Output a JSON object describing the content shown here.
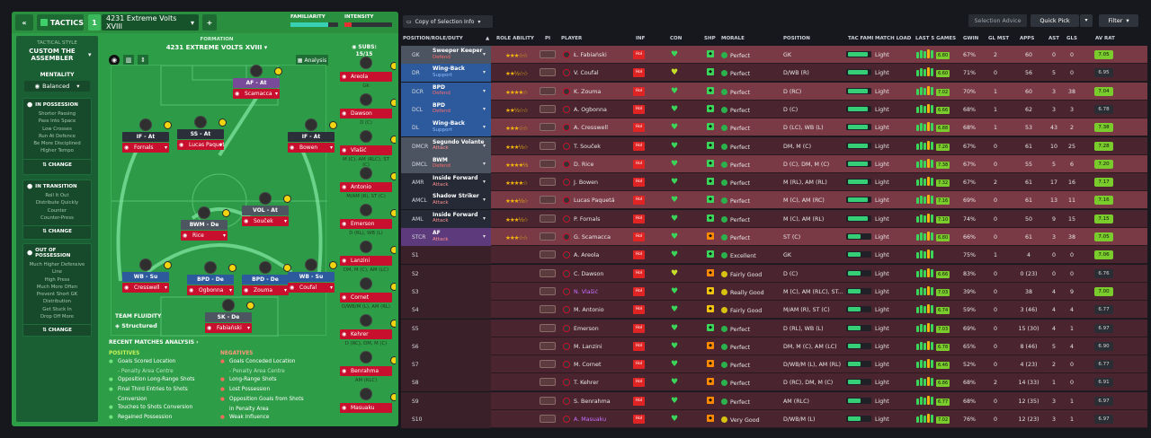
{
  "topbar": {
    "back": "«",
    "tactics": "TACTICS",
    "slot": "1",
    "tactic_name": "4231 Extreme Volts XVIII",
    "add": "+",
    "familiarity": "FAMILIARITY",
    "intensity": "INTENSITY"
  },
  "sidebar": {
    "style_label": "TACTICAL STYLE",
    "style_name": "CUSTOM THE ASSEMBLER",
    "mentality_label": "MENTALITY",
    "mentality_value": "Balanced",
    "in_possession": {
      "title": "IN POSSESSION",
      "lines": [
        "Shorter Passing",
        "Pass Into Space",
        "Low Crosses",
        "Run At Defence",
        "Be More Disciplined",
        "Higher Tempo"
      ],
      "change": "CHANGE"
    },
    "in_transition": {
      "title": "IN TRANSITION",
      "lines": [
        "Roll It Out",
        "Distribute Quickly",
        "Counter",
        "Counter-Press"
      ],
      "change": "CHANGE"
    },
    "out_of_possession": {
      "title": "OUT OF POSSESSION",
      "lines": [
        "Much Higher Defensive",
        "Line",
        "High Press",
        "Much More Often",
        "Prevent Short GK",
        "Distribution",
        "Get Stuck In",
        "Drop Off More"
      ],
      "change": "CHANGE"
    }
  },
  "formation": {
    "label": "FORMATION",
    "name": "4231 EXTREME VOLTS XVIII",
    "analysis": "Analysis",
    "subs_label": "SUBS:",
    "subs_count": "15/15"
  },
  "pitch_players": [
    {
      "role": "AF - At",
      "name": "Scamacca",
      "color": "#7a4a9a"
    },
    {
      "role": "IF - At",
      "name": "Fornals",
      "color": "#2a2f3a"
    },
    {
      "role": "SS - At",
      "name": "Lucas Paquetá",
      "color": "#2a2f3a"
    },
    {
      "role": "IF - At",
      "name": "Bowen",
      "color": "#2a2f3a"
    },
    {
      "role": "BWM - De",
      "name": "Rice",
      "color": "#4d5660"
    },
    {
      "role": "VOL - At",
      "name": "Souček",
      "color": "#4d5660"
    },
    {
      "role": "WB - Su",
      "name": "Cresswell",
      "color": "#2c5a9c"
    },
    {
      "role": "BPD - De",
      "name": "Ogbonna",
      "color": "#2c5a9c"
    },
    {
      "role": "BPD - De",
      "name": "Zouma",
      "color": "#2c5a9c"
    },
    {
      "role": "WB - Su",
      "name": "Coufal",
      "color": "#2c5a9c"
    },
    {
      "role": "SK - De",
      "name": "Fabiański",
      "color": "#4d5660"
    }
  ],
  "team_fluidity": {
    "label": "TEAM FLUIDITY",
    "value": "Structured"
  },
  "subs": [
    {
      "name": "Areola",
      "pos": "GK"
    },
    {
      "name": "Dawson",
      "pos": "D (C)"
    },
    {
      "name": "Vlašić",
      "pos": "M (C), AM (RLC), ST (C)"
    },
    {
      "name": "Antonio",
      "pos": "M/AM (R), ST (C)"
    },
    {
      "name": "Emerson",
      "pos": "D (RL), WB (L)"
    },
    {
      "name": "Lanzini",
      "pos": "DM, M (C), AM (LC)"
    },
    {
      "name": "Cornet",
      "pos": "D/WB/M (L), AM (RL)"
    },
    {
      "name": "Kehrer",
      "pos": "D (RC), DM, M (C)"
    },
    {
      "name": "Benrahma",
      "pos": "AM (RLC)"
    },
    {
      "name": "Masuaku",
      "pos": ""
    }
  ],
  "analysis": {
    "title": "RECENT MATCHES ANALYSIS",
    "positives_label": "POSITIVES",
    "negatives_label": "NEGATIVES",
    "positives": [
      "Goals Scored Location",
      "- Penalty Area Centre",
      "Opposition Long-Range Shots",
      "Final Third Entries to Shots",
      "Conversion",
      "Touches to Shots Conversion",
      "Regained Possession"
    ],
    "negatives": [
      "Goals Conceded Location",
      "- Penalty Area Centre",
      "Long-Range Shots",
      "Lost Possession",
      "Opposition Goals from Shots",
      "in Penalty Area",
      "Weak Influence"
    ]
  },
  "right_top": {
    "copy": "Copy of Selection Info",
    "advice": "Selection Advice",
    "quick_pick": "Quick Pick",
    "filter": "Filter"
  },
  "headers": {
    "pos": "POSITION/ROLE/DUTY",
    "ability": "ROLE ABILITY",
    "pi": "PI",
    "player": "PLAYER",
    "inf": "INF",
    "con": "CON",
    "shp": "SHP",
    "morale": "MORALE",
    "position": "POSITION",
    "tac": "TAC FAMI",
    "load": "MATCH LOAD",
    "l5": "LAST 5 GAMES",
    "gwin": "GWIN",
    "glm": "GL MST",
    "apps": "APPS",
    "ast": "AST",
    "gls": "GLS",
    "av": "AV RAT"
  },
  "rows": [
    {
      "pos": "GK",
      "role": "Sweeper Keeper",
      "duty": "Defend",
      "stars": "★★★☆☆",
      "name": "Ł. Fabiański",
      "inf": "Hol",
      "morale": "Perfect",
      "position": "GK",
      "load": "Light",
      "l5": "6.80",
      "gwin": "67%",
      "glm": "2",
      "apps": "60",
      "ast": "0",
      "gls": "0",
      "av": "7.05",
      "hl": "#7a3a45",
      "pc": "#4c5462"
    },
    {
      "pos": "DR",
      "role": "Wing-Back",
      "duty": "Support",
      "stars": "★★½☆☆",
      "name": "V. Coufal",
      "inf": "Hol",
      "morale": "Perfect",
      "position": "D/WB (R)",
      "load": "Light",
      "l5": "6.60",
      "gwin": "71%",
      "glm": "0",
      "apps": "56",
      "ast": "5",
      "gls": "0",
      "av": "6.95",
      "hl": "#4a2530",
      "pc": "#2c5a9c"
    },
    {
      "pos": "DCR",
      "role": "BPD",
      "duty": "Defend",
      "stars": "★★★★☆",
      "name": "K. Zouma",
      "inf": "Hol",
      "morale": "Perfect",
      "position": "D (RC)",
      "load": "Light",
      "l5": "7.02",
      "gwin": "70%",
      "glm": "1",
      "apps": "60",
      "ast": "3",
      "gls": "38",
      "av": "7.04",
      "hl": "#7a3a45",
      "pc": "#2c5a9c"
    },
    {
      "pos": "DCL",
      "role": "BPD",
      "duty": "Defend",
      "stars": "★★½☆☆",
      "name": "A. Ogbonna",
      "inf": "Hol",
      "morale": "Perfect",
      "position": "D (C)",
      "load": "Light",
      "l5": "6.66",
      "gwin": "68%",
      "glm": "1",
      "apps": "62",
      "ast": "3",
      "gls": "3",
      "av": "6.78",
      "hl": "#4a2530",
      "pc": "#2c5a9c"
    },
    {
      "pos": "DL",
      "role": "Wing-Back",
      "duty": "Support",
      "stars": "★★★☆☆",
      "name": "A. Cresswell",
      "inf": "Hol",
      "morale": "Perfect",
      "position": "D (LC), WB (L)",
      "load": "Light",
      "l5": "6.88",
      "gwin": "68%",
      "glm": "1",
      "apps": "53",
      "ast": "43",
      "gls": "2",
      "av": "7.38",
      "hl": "#7a3a45",
      "pc": "#2c5a9c"
    },
    {
      "pos": "DMCR",
      "role": "Segundo Volante",
      "duty": "Attack",
      "stars": "★★★½☆",
      "name": "T. Souček",
      "inf": "Hol",
      "morale": "Perfect",
      "position": "DM, M (C)",
      "load": "Light",
      "l5": "7.26",
      "gwin": "67%",
      "glm": "0",
      "apps": "61",
      "ast": "10",
      "gls": "25",
      "av": "7.28",
      "hl": "#4a2530",
      "pc": "#4c5462"
    },
    {
      "pos": "DMCL",
      "role": "BWM",
      "duty": "Defend",
      "stars": "★★★★½",
      "name": "D. Rice",
      "inf": "Hol",
      "morale": "Perfect",
      "position": "D (C), DM, M (C)",
      "load": "Light",
      "l5": "7.38",
      "gwin": "67%",
      "glm": "0",
      "apps": "55",
      "ast": "5",
      "gls": "6",
      "av": "7.20",
      "hl": "#7a3a45",
      "pc": "#4c5462"
    },
    {
      "pos": "AMR",
      "role": "Inside Forward",
      "duty": "Attack",
      "stars": "★★★★☆",
      "name": "J. Bowen",
      "inf": "Hol",
      "morale": "Perfect",
      "position": "M (RL), AM (RL)",
      "load": "Light",
      "l5": "7.32",
      "gwin": "67%",
      "glm": "2",
      "apps": "61",
      "ast": "17",
      "gls": "16",
      "av": "7.17",
      "hl": "#4a2530",
      "pc": "#252a36"
    },
    {
      "pos": "AMCL",
      "role": "Shadow Striker",
      "duty": "Attack",
      "stars": "★★★½☆",
      "name": "Lucas Paquetá",
      "inf": "Hol",
      "morale": "Perfect",
      "position": "M (C), AM (RC)",
      "load": "Light",
      "l5": "7.16",
      "gwin": "69%",
      "glm": "0",
      "apps": "61",
      "ast": "13",
      "gls": "11",
      "av": "7.16",
      "hl": "#7a3a45",
      "pc": "#252a36"
    },
    {
      "pos": "AML",
      "role": "Inside Forward",
      "duty": "Attack",
      "stars": "★★★½☆",
      "name": "P. Fornals",
      "inf": "Hol",
      "morale": "Perfect",
      "position": "M (C), AM (RL)",
      "load": "Light",
      "l5": "7.10",
      "gwin": "74%",
      "glm": "0",
      "apps": "50",
      "ast": "9",
      "gls": "15",
      "av": "7.15",
      "hl": "#4a2530",
      "pc": "#252a36"
    },
    {
      "pos": "STCR",
      "role": "AF",
      "duty": "Attack",
      "stars": "★★★☆☆",
      "name": "G. Scamacca",
      "inf": "Hol",
      "morale": "Perfect",
      "position": "ST (C)",
      "load": "Light",
      "l5": "6.80",
      "gwin": "66%",
      "glm": "0",
      "apps": "61",
      "ast": "3",
      "gls": "38",
      "av": "7.05",
      "hl": "#7a3a45",
      "pc": "#5c3a7c"
    },
    {
      "pos": "S1",
      "role": "",
      "duty": "",
      "stars": "",
      "name": "A. Areola",
      "inf": "Hol",
      "morale": "Excellent",
      "position": "GK",
      "load": "Light",
      "l5": "",
      "gwin": "75%",
      "glm": "1",
      "apps": "4",
      "ast": "0",
      "gls": "0",
      "av": "7.06",
      "hl": "#4a2530",
      "pc": ""
    },
    {
      "pos": "S2",
      "role": "",
      "duty": "",
      "stars": "",
      "name": "C. Dawson",
      "inf": "Hol",
      "morale": "Fairly Good",
      "position": "D (C)",
      "load": "Light",
      "l5": "6.66",
      "gwin": "83%",
      "glm": "0",
      "apps": "0 (23)",
      "ast": "0",
      "gls": "0",
      "av": "6.76",
      "hl": "#4a2530",
      "pc": ""
    },
    {
      "pos": "S3",
      "role": "",
      "duty": "",
      "stars": "",
      "name": "N. Vlašić",
      "inf": "Hol",
      "morale": "Really Good",
      "position": "M (C), AM (RLC), ST...",
      "load": "Light",
      "l5": "7.03",
      "gwin": "39%",
      "glm": "0",
      "apps": "38",
      "ast": "4",
      "gls": "9",
      "av": "7.00",
      "hl": "#4a2530",
      "pc": ""
    },
    {
      "pos": "S4",
      "role": "",
      "duty": "",
      "stars": "",
      "name": "M. Antonio",
      "inf": "Hol",
      "morale": "Fairly Good",
      "position": "M/AM (R), ST (C)",
      "load": "Light",
      "l5": "6.74",
      "gwin": "59%",
      "glm": "0",
      "apps": "3 (46)",
      "ast": "4",
      "gls": "4",
      "av": "6.77",
      "hl": "#4a2530",
      "pc": ""
    },
    {
      "pos": "S5",
      "role": "",
      "duty": "",
      "stars": "",
      "name": "Emerson",
      "inf": "Hol",
      "morale": "Perfect",
      "position": "D (RL), WB (L)",
      "load": "Light",
      "l5": "7.03",
      "gwin": "69%",
      "glm": "0",
      "apps": "15 (30)",
      "ast": "4",
      "gls": "1",
      "av": "6.97",
      "hl": "#4a2530",
      "pc": ""
    },
    {
      "pos": "S6",
      "role": "",
      "duty": "",
      "stars": "",
      "name": "M. Lanzini",
      "inf": "Hol",
      "morale": "Perfect",
      "position": "DM, M (C), AM (LC)",
      "load": "Light",
      "l5": "6.78",
      "gwin": "65%",
      "glm": "0",
      "apps": "8 (46)",
      "ast": "5",
      "gls": "4",
      "av": "6.90",
      "hl": "#4a2530",
      "pc": ""
    },
    {
      "pos": "S7",
      "role": "",
      "duty": "",
      "stars": "",
      "name": "M. Cornet",
      "inf": "Hol",
      "morale": "Perfect",
      "position": "D/WB/M (L), AM (RL)",
      "load": "Light",
      "l5": "6.46",
      "gwin": "52%",
      "glm": "0",
      "apps": "4 (23)",
      "ast": "2",
      "gls": "0",
      "av": "6.77",
      "hl": "#4a2530",
      "pc": ""
    },
    {
      "pos": "S8",
      "role": "",
      "duty": "",
      "stars": "",
      "name": "T. Kehrer",
      "inf": "Hol",
      "morale": "Perfect",
      "position": "D (RC), DM, M (C)",
      "load": "Light",
      "l5": "6.86",
      "gwin": "68%",
      "glm": "2",
      "apps": "14 (33)",
      "ast": "1",
      "gls": "0",
      "av": "6.91",
      "hl": "#4a2530",
      "pc": ""
    },
    {
      "pos": "S9",
      "role": "",
      "duty": "",
      "stars": "",
      "name": "S. Benrahma",
      "inf": "Hol",
      "morale": "Perfect",
      "position": "AM (RLC)",
      "load": "Light",
      "l5": "6.77",
      "gwin": "68%",
      "glm": "0",
      "apps": "12 (35)",
      "ast": "3",
      "gls": "1",
      "av": "6.97",
      "hl": "#4a2530",
      "pc": ""
    },
    {
      "pos": "S10",
      "role": "",
      "duty": "",
      "stars": "",
      "name": "A. Masuaku",
      "inf": "Hol",
      "morale": "Very Good",
      "position": "D/WB/M (L)",
      "load": "Light",
      "l5": "7.02",
      "gwin": "76%",
      "glm": "0",
      "apps": "12 (23)",
      "ast": "3",
      "gls": "1",
      "av": "6.97",
      "hl": "#4a2530",
      "pc": ""
    }
  ]
}
